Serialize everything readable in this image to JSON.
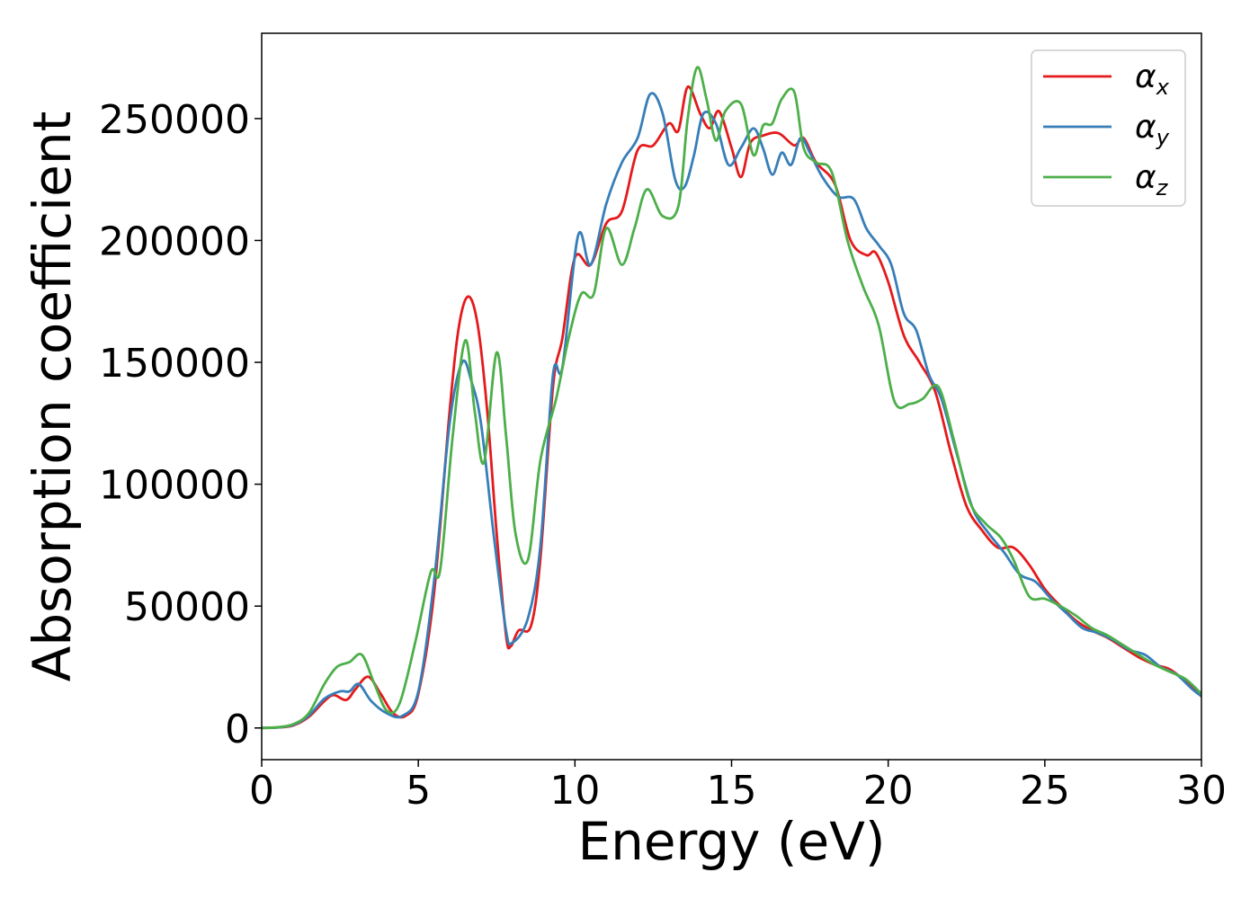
{
  "chart_data": {
    "type": "line",
    "title": "",
    "xlabel": "Energy (eV)",
    "ylabel": "Absorption coefficient",
    "xlim": [
      0,
      30
    ],
    "ylim": [
      -13000,
      285000
    ],
    "xticks": [
      0,
      5,
      10,
      15,
      20,
      25,
      30
    ],
    "yticks": [
      0,
      50000,
      100000,
      150000,
      200000,
      250000
    ],
    "grid": false,
    "legend": "top-right",
    "series": [
      {
        "name": "αx",
        "symbol": "α",
        "sub": "x",
        "color": "#e41a1c",
        "points": [
          [
            0,
            0
          ],
          [
            0.5,
            200
          ],
          [
            1.0,
            1000
          ],
          [
            1.5,
            4500
          ],
          [
            2.0,
            11000
          ],
          [
            2.3,
            13500
          ],
          [
            2.7,
            11500
          ],
          [
            3.0,
            16000
          ],
          [
            3.4,
            21000
          ],
          [
            3.8,
            14000
          ],
          [
            4.2,
            6000
          ],
          [
            4.6,
            5000
          ],
          [
            5.0,
            14000
          ],
          [
            5.5,
            55000
          ],
          [
            6.0,
            130000
          ],
          [
            6.3,
            165000
          ],
          [
            6.6,
            177000
          ],
          [
            6.9,
            165000
          ],
          [
            7.2,
            130000
          ],
          [
            7.5,
            80000
          ],
          [
            7.8,
            38000
          ],
          [
            7.95,
            33500
          ],
          [
            8.2,
            40000
          ],
          [
            8.6,
            42000
          ],
          [
            8.9,
            70000
          ],
          [
            9.3,
            140000
          ],
          [
            9.6,
            160000
          ],
          [
            10.0,
            193000
          ],
          [
            10.5,
            190000
          ],
          [
            11.0,
            207000
          ],
          [
            11.5,
            212000
          ],
          [
            12.0,
            237000
          ],
          [
            12.5,
            239000
          ],
          [
            13.0,
            248000
          ],
          [
            13.3,
            245000
          ],
          [
            13.6,
            263000
          ],
          [
            14.0,
            252000
          ],
          [
            14.3,
            246000
          ],
          [
            14.6,
            253000
          ],
          [
            15.0,
            238000
          ],
          [
            15.3,
            226000
          ],
          [
            15.6,
            240000
          ],
          [
            16.0,
            243000
          ],
          [
            16.5,
            244000
          ],
          [
            17.0,
            239000
          ],
          [
            17.3,
            242000
          ],
          [
            17.7,
            232000
          ],
          [
            18.3,
            223000
          ],
          [
            18.8,
            200000
          ],
          [
            19.3,
            194000
          ],
          [
            19.6,
            195000
          ],
          [
            20.0,
            183000
          ],
          [
            20.5,
            161000
          ],
          [
            21.0,
            150000
          ],
          [
            21.5,
            138000
          ],
          [
            22.0,
            113000
          ],
          [
            22.5,
            91000
          ],
          [
            23.0,
            81000
          ],
          [
            23.5,
            74000
          ],
          [
            24.0,
            74000
          ],
          [
            24.5,
            67000
          ],
          [
            25.0,
            57000
          ],
          [
            25.5,
            50000
          ],
          [
            26.0,
            44000
          ],
          [
            26.5,
            40000
          ],
          [
            27.0,
            37000
          ],
          [
            27.5,
            33000
          ],
          [
            28.0,
            29000
          ],
          [
            28.5,
            26000
          ],
          [
            29.0,
            24000
          ],
          [
            29.5,
            19000
          ],
          [
            30.0,
            13000
          ]
        ]
      },
      {
        "name": "αy",
        "symbol": "α",
        "sub": "y",
        "color": "#377eb8",
        "points": [
          [
            0,
            0
          ],
          [
            0.5,
            200
          ],
          [
            1.0,
            1200
          ],
          [
            1.5,
            5000
          ],
          [
            2.0,
            12000
          ],
          [
            2.5,
            15000
          ],
          [
            2.8,
            15000
          ],
          [
            3.1,
            18000
          ],
          [
            3.5,
            11000
          ],
          [
            4.0,
            6000
          ],
          [
            4.5,
            5000
          ],
          [
            5.0,
            15000
          ],
          [
            5.5,
            60000
          ],
          [
            6.0,
            125000
          ],
          [
            6.4,
            150000
          ],
          [
            6.7,
            142000
          ],
          [
            7.0,
            125000
          ],
          [
            7.4,
            80000
          ],
          [
            7.8,
            40000
          ],
          [
            8.0,
            35000
          ],
          [
            8.5,
            45000
          ],
          [
            8.9,
            75000
          ],
          [
            9.3,
            145000
          ],
          [
            9.6,
            148000
          ],
          [
            10.1,
            202000
          ],
          [
            10.5,
            190000
          ],
          [
            11.0,
            215000
          ],
          [
            11.5,
            232000
          ],
          [
            12.0,
            242000
          ],
          [
            12.4,
            260000
          ],
          [
            12.8,
            252000
          ],
          [
            13.2,
            225000
          ],
          [
            13.5,
            222000
          ],
          [
            13.8,
            235000
          ],
          [
            14.1,
            252000
          ],
          [
            14.5,
            248000
          ],
          [
            14.9,
            231000
          ],
          [
            15.3,
            238000
          ],
          [
            15.7,
            246000
          ],
          [
            16.0,
            238000
          ],
          [
            16.3,
            227000
          ],
          [
            16.6,
            236000
          ],
          [
            16.9,
            231000
          ],
          [
            17.2,
            242000
          ],
          [
            17.5,
            236000
          ],
          [
            17.9,
            226000
          ],
          [
            18.4,
            218000
          ],
          [
            18.9,
            217000
          ],
          [
            19.3,
            205000
          ],
          [
            19.7,
            198000
          ],
          [
            20.1,
            190000
          ],
          [
            20.5,
            170000
          ],
          [
            20.9,
            163000
          ],
          [
            21.3,
            145000
          ],
          [
            21.7,
            135000
          ],
          [
            22.2,
            112000
          ],
          [
            22.7,
            90000
          ],
          [
            23.2,
            80000
          ],
          [
            23.7,
            72000
          ],
          [
            24.2,
            63000
          ],
          [
            24.7,
            60000
          ],
          [
            25.2,
            53000
          ],
          [
            25.7,
            47000
          ],
          [
            26.2,
            41000
          ],
          [
            26.7,
            39000
          ],
          [
            27.2,
            36000
          ],
          [
            27.7,
            32000
          ],
          [
            28.2,
            30000
          ],
          [
            28.7,
            25000
          ],
          [
            29.2,
            22000
          ],
          [
            29.7,
            16000
          ],
          [
            30.0,
            13000
          ]
        ]
      },
      {
        "name": "αz",
        "symbol": "α",
        "sub": "z",
        "color": "#4daf4a",
        "points": [
          [
            0,
            0
          ],
          [
            0.5,
            300
          ],
          [
            1.0,
            1500
          ],
          [
            1.5,
            6000
          ],
          [
            2.0,
            18000
          ],
          [
            2.4,
            25000
          ],
          [
            2.8,
            27000
          ],
          [
            3.2,
            30000
          ],
          [
            3.6,
            18000
          ],
          [
            4.0,
            7000
          ],
          [
            4.4,
            10000
          ],
          [
            4.9,
            35000
          ],
          [
            5.4,
            64000
          ],
          [
            5.7,
            65000
          ],
          [
            6.1,
            120000
          ],
          [
            6.5,
            159000
          ],
          [
            6.8,
            130000
          ],
          [
            7.1,
            109000
          ],
          [
            7.5,
            154000
          ],
          [
            7.8,
            120000
          ],
          [
            8.1,
            80000
          ],
          [
            8.5,
            69000
          ],
          [
            8.9,
            110000
          ],
          [
            9.4,
            135000
          ],
          [
            9.8,
            160000
          ],
          [
            10.2,
            178000
          ],
          [
            10.6,
            178000
          ],
          [
            11.0,
            205000
          ],
          [
            11.5,
            190000
          ],
          [
            11.9,
            205000
          ],
          [
            12.3,
            221000
          ],
          [
            12.8,
            210000
          ],
          [
            13.3,
            214000
          ],
          [
            13.6,
            250000
          ],
          [
            13.9,
            271000
          ],
          [
            14.2,
            258000
          ],
          [
            14.5,
            241000
          ],
          [
            14.8,
            253000
          ],
          [
            15.3,
            256000
          ],
          [
            15.7,
            235000
          ],
          [
            16.0,
            247000
          ],
          [
            16.3,
            248000
          ],
          [
            16.6,
            258000
          ],
          [
            17.0,
            261000
          ],
          [
            17.3,
            238000
          ],
          [
            17.7,
            232000
          ],
          [
            18.2,
            228000
          ],
          [
            18.7,
            200000
          ],
          [
            19.2,
            181000
          ],
          [
            19.7,
            165000
          ],
          [
            20.2,
            134000
          ],
          [
            20.7,
            133000
          ],
          [
            21.1,
            135000
          ],
          [
            21.6,
            140000
          ],
          [
            22.1,
            118000
          ],
          [
            22.6,
            93000
          ],
          [
            23.1,
            84000
          ],
          [
            23.6,
            78000
          ],
          [
            24.0,
            69000
          ],
          [
            24.5,
            54000
          ],
          [
            25.0,
            53000
          ],
          [
            25.5,
            50000
          ],
          [
            26.0,
            46000
          ],
          [
            26.5,
            41000
          ],
          [
            27.0,
            38000
          ],
          [
            27.5,
            34000
          ],
          [
            28.0,
            30000
          ],
          [
            28.5,
            26000
          ],
          [
            29.0,
            23000
          ],
          [
            29.5,
            20000
          ],
          [
            30.0,
            14000
          ]
        ]
      }
    ]
  }
}
